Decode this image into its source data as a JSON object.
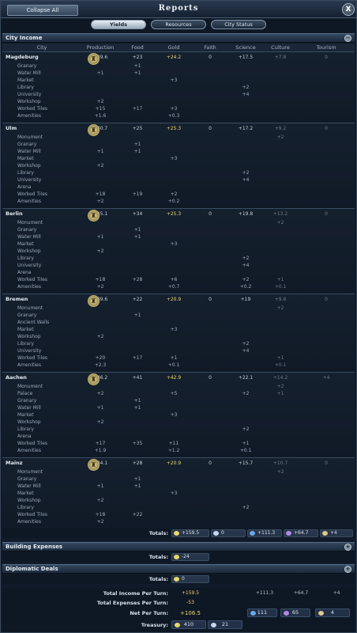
{
  "window": {
    "title": "Reports",
    "collapse_label": "Collapse All",
    "close_glyph": "X"
  },
  "tabs": [
    {
      "label": "Yields",
      "active": true
    },
    {
      "label": "Resources",
      "active": false
    },
    {
      "label": "City Status",
      "active": false
    }
  ],
  "city_income": {
    "section_label": "City Income",
    "toggle_glyph": "−",
    "columns": [
      "City",
      "Production",
      "Food",
      "Gold",
      "Faith",
      "Science",
      "Culture",
      "Tourism"
    ],
    "cities": [
      {
        "name": "Magdeburg",
        "totals": [
          "+39.6",
          "+23",
          "+24.2",
          "0",
          "+17.5",
          "+7.8",
          "0"
        ],
        "rows": [
          {
            "name": "Granary",
            "values": [
              "",
              "+1",
              "",
              "",
              "",
              "",
              ""
            ]
          },
          {
            "name": "Water Mill",
            "values": [
              "+1",
              "+1",
              "",
              "",
              "",
              "",
              ""
            ]
          },
          {
            "name": "Market",
            "values": [
              "",
              "",
              "+3",
              "",
              "",
              "",
              ""
            ]
          },
          {
            "name": "Library",
            "values": [
              "",
              "",
              "",
              "",
              "+2",
              "",
              ""
            ]
          },
          {
            "name": "University",
            "values": [
              "",
              "",
              "",
              "",
              "+4",
              "",
              ""
            ]
          },
          {
            "name": "Workshop",
            "values": [
              "+2",
              "",
              "",
              "",
              "",
              "",
              ""
            ]
          },
          {
            "name": "Worked Tiles",
            "values": [
              "+15",
              "+17",
              "+3",
              "",
              "",
              "",
              ""
            ]
          },
          {
            "name": "Amenities",
            "values": [
              "+1.6",
              "",
              "+0.3",
              "",
              "",
              "",
              ""
            ]
          }
        ]
      },
      {
        "name": "Ulm",
        "totals": [
          "+40.7",
          "+25",
          "+25.3",
          "0",
          "+17.2",
          "+9.2",
          "0"
        ],
        "rows": [
          {
            "name": "Monument",
            "values": [
              "",
              "",
              "",
              "",
              "",
              "+2",
              ""
            ]
          },
          {
            "name": "Granary",
            "values": [
              "",
              "+1",
              "",
              "",
              "",
              "",
              ""
            ]
          },
          {
            "name": "Water Mill",
            "values": [
              "+1",
              "+1",
              "",
              "",
              "",
              "",
              ""
            ]
          },
          {
            "name": "Market",
            "values": [
              "",
              "",
              "+3",
              "",
              "",
              "",
              ""
            ]
          },
          {
            "name": "Workshop",
            "values": [
              "+2",
              "",
              "",
              "",
              "",
              "",
              ""
            ]
          },
          {
            "name": "Library",
            "values": [
              "",
              "",
              "",
              "",
              "+2",
              "",
              ""
            ]
          },
          {
            "name": "University",
            "values": [
              "",
              "",
              "",
              "",
              "+4",
              "",
              ""
            ]
          },
          {
            "name": "Arena",
            "values": [
              "",
              "",
              "",
              "",
              "",
              "",
              ""
            ]
          },
          {
            "name": "Worked Tiles",
            "values": [
              "+18",
              "+19",
              "+2",
              "",
              "",
              "",
              ""
            ]
          },
          {
            "name": "Amenities",
            "values": [
              "+2",
              "",
              "+0.2",
              "",
              "",
              "",
              ""
            ]
          }
        ]
      },
      {
        "name": "Berlin",
        "totals": [
          "+45.1",
          "+34",
          "+25.3",
          "0",
          "+19.8",
          "+13.2",
          "0"
        ],
        "rows": [
          {
            "name": "Monument",
            "values": [
              "",
              "",
              "",
              "",
              "",
              "+2",
              ""
            ]
          },
          {
            "name": "Granary",
            "values": [
              "",
              "+1",
              "",
              "",
              "",
              "",
              ""
            ]
          },
          {
            "name": "Water Mill",
            "values": [
              "+1",
              "+1",
              "",
              "",
              "",
              "",
              ""
            ]
          },
          {
            "name": "Market",
            "values": [
              "",
              "",
              "+3",
              "",
              "",
              "",
              ""
            ]
          },
          {
            "name": "Workshop",
            "values": [
              "+2",
              "",
              "",
              "",
              "",
              "",
              ""
            ]
          },
          {
            "name": "Library",
            "values": [
              "",
              "",
              "",
              "",
              "+2",
              "",
              ""
            ]
          },
          {
            "name": "University",
            "values": [
              "",
              "",
              "",
              "",
              "+4",
              "",
              ""
            ]
          },
          {
            "name": "Arena",
            "values": [
              "",
              "",
              "",
              "",
              "",
              "",
              ""
            ]
          },
          {
            "name": "Worked Tiles",
            "values": [
              "+18",
              "+28",
              "+6",
              "",
              "+2",
              "+1",
              ""
            ]
          },
          {
            "name": "Amenities",
            "values": [
              "+2",
              "",
              "+0.7",
              "",
              "+0.2",
              "+0.1",
              ""
            ]
          }
        ]
      },
      {
        "name": "Bremen",
        "totals": [
          "+39.6",
          "+22",
          "+20.9",
          "0",
          "+19",
          "+9.6",
          "0"
        ],
        "rows": [
          {
            "name": "Monument",
            "values": [
              "",
              "",
              "",
              "",
              "",
              "+2",
              ""
            ]
          },
          {
            "name": "Granary",
            "values": [
              "",
              "+1",
              "",
              "",
              "",
              "",
              ""
            ]
          },
          {
            "name": "Ancient Walls",
            "values": [
              "",
              "",
              "",
              "",
              "",
              "",
              ""
            ]
          },
          {
            "name": "Market",
            "values": [
              "",
              "",
              "+3",
              "",
              "",
              "",
              ""
            ]
          },
          {
            "name": "Workshop",
            "values": [
              "+2",
              "",
              "",
              "",
              "",
              "",
              ""
            ]
          },
          {
            "name": "Library",
            "values": [
              "",
              "",
              "",
              "",
              "+2",
              "",
              ""
            ]
          },
          {
            "name": "University",
            "values": [
              "",
              "",
              "",
              "",
              "+4",
              "",
              ""
            ]
          },
          {
            "name": "Worked Tiles",
            "values": [
              "+20",
              "+17",
              "+1",
              "",
              "",
              "+1",
              ""
            ]
          },
          {
            "name": "Amenities",
            "values": [
              "+2.3",
              "",
              "+0.1",
              "",
              "",
              "+0.1",
              ""
            ]
          }
        ]
      },
      {
        "name": "Aachen",
        "totals": [
          "+46.2",
          "+41",
          "+42.9",
          "0",
          "+22.1",
          "+14.2",
          "+4"
        ],
        "rows": [
          {
            "name": "Monument",
            "values": [
              "",
              "",
              "",
              "",
              "",
              "+2",
              ""
            ]
          },
          {
            "name": "Palace",
            "values": [
              "+2",
              "",
              "+5",
              "",
              "+2",
              "+1",
              ""
            ]
          },
          {
            "name": "Granary",
            "values": [
              "",
              "+1",
              "",
              "",
              "",
              "",
              ""
            ]
          },
          {
            "name": "Water Mill",
            "values": [
              "+1",
              "+1",
              "",
              "",
              "",
              "",
              ""
            ]
          },
          {
            "name": "Market",
            "values": [
              "",
              "",
              "+3",
              "",
              "",
              "",
              ""
            ]
          },
          {
            "name": "Workshop",
            "values": [
              "+2",
              "",
              "",
              "",
              "",
              "",
              ""
            ]
          },
          {
            "name": "Library",
            "values": [
              "",
              "",
              "",
              "",
              "+2",
              "",
              ""
            ]
          },
          {
            "name": "Arena",
            "values": [
              "",
              "",
              "",
              "",
              "",
              "",
              ""
            ]
          },
          {
            "name": "Worked Tiles",
            "values": [
              "+17",
              "+35",
              "+11",
              "",
              "+1",
              "",
              ""
            ]
          },
          {
            "name": "Amenities",
            "values": [
              "+1.9",
              "",
              "+1.2",
              "",
              "+0.1",
              "",
              ""
            ]
          }
        ]
      },
      {
        "name": "Mainz",
        "totals": [
          "+34.1",
          "+28",
          "+20.9",
          "0",
          "+15.7",
          "+10.7",
          "0"
        ],
        "rows": [
          {
            "name": "Monument",
            "values": [
              "",
              "",
              "",
              "",
              "",
              "+2",
              ""
            ]
          },
          {
            "name": "Granary",
            "values": [
              "",
              "+1",
              "",
              "",
              "",
              "",
              ""
            ]
          },
          {
            "name": "Water Mill",
            "values": [
              "+1",
              "+1",
              "",
              "",
              "",
              "",
              ""
            ]
          },
          {
            "name": "Market",
            "values": [
              "",
              "",
              "+3",
              "",
              "",
              "",
              ""
            ]
          },
          {
            "name": "Workshop",
            "values": [
              "+2",
              "",
              "",
              "",
              "",
              "",
              ""
            ]
          },
          {
            "name": "Library",
            "values": [
              "",
              "",
              "",
              "",
              "+2",
              "",
              ""
            ]
          },
          {
            "name": "Worked Tiles",
            "values": [
              "+18",
              "+22",
              "",
              "",
              "",
              "",
              ""
            ]
          },
          {
            "name": "Amenities",
            "values": [
              "+2",
              "",
              "",
              "",
              "",
              "",
              ""
            ]
          }
        ]
      }
    ],
    "totals_label": "Totals:",
    "totals": {
      "gold": "+159.5",
      "faith": "0",
      "science": "+111.3",
      "culture": "+64.7",
      "tourism": "+4"
    }
  },
  "building_expenses": {
    "section_label": "Building Expenses",
    "totals_label": "Totals:",
    "gold": "-24"
  },
  "diplomatic_deals": {
    "section_label": "Diplomatic Deals",
    "totals_label": "Totals:",
    "gold": "0"
  },
  "summary": {
    "income_label": "Total Income Per Turn:",
    "income": {
      "gold": "+159.5",
      "science": "+111.3",
      "culture": "+64.7",
      "tourism": "+4"
    },
    "expenses_label": "Total Expenses Per Turn:",
    "expenses_gold": "-53",
    "net_label": "Net Per Turn:",
    "net_gold": "+106.5",
    "net_science": "111",
    "net_culture": "65",
    "net_tourism": "4",
    "treasury_label": "Treasury:",
    "treasury_gold": "410",
    "treasury_faith": "21"
  },
  "colors": {
    "gold": "#e8d86a",
    "faith": "#c8d8f0",
    "science": "#6aa8e8",
    "culture": "#b08ae0",
    "tourism": "#e0c890"
  }
}
